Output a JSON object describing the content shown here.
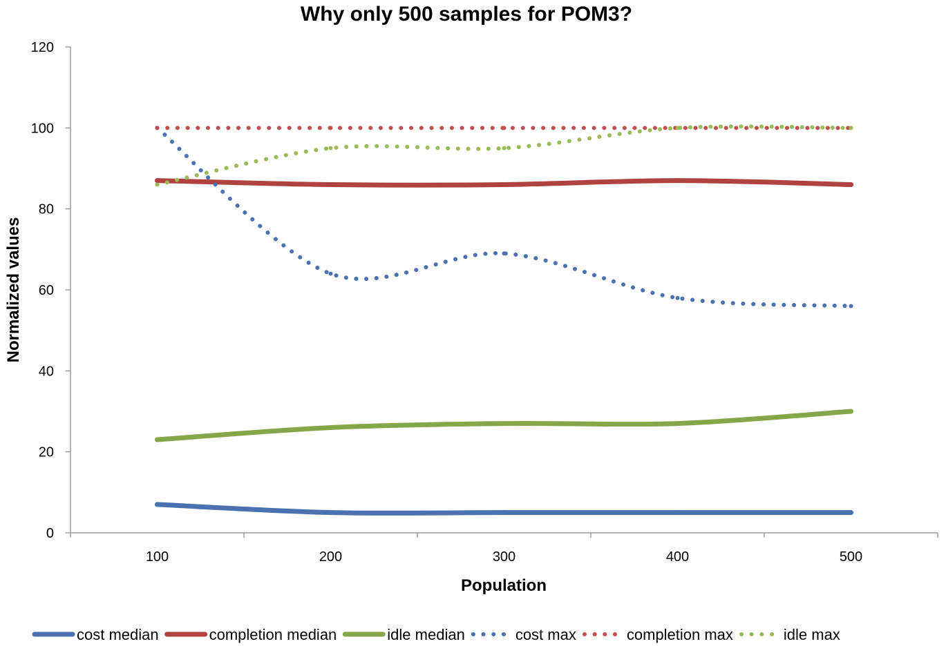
{
  "chart_data": {
    "type": "line",
    "title": "Why only 500 samples for POM3?",
    "xlabel": "Population",
    "ylabel": "Normalized values",
    "categories": [
      "100",
      "200",
      "300",
      "400",
      "500"
    ],
    "ylim": [
      0,
      120
    ],
    "yticks": [
      "0",
      "20",
      "40",
      "60",
      "80",
      "100",
      "120"
    ],
    "grid": false,
    "legend_position": "bottom",
    "series": [
      {
        "name": "cost median",
        "values": [
          7,
          5,
          5,
          5,
          5
        ],
        "color": "#4a72b0",
        "style": "solid"
      },
      {
        "name": "completion median",
        "values": [
          87,
          86,
          86,
          87,
          86
        ],
        "color": "#b0423f",
        "style": "solid"
      },
      {
        "name": "idle median",
        "values": [
          23,
          26,
          27,
          27,
          30
        ],
        "color": "#86a64a",
        "style": "solid"
      },
      {
        "name": "cost max",
        "values": [
          100,
          64,
          69,
          58,
          56
        ],
        "color": "#4a72b0",
        "style": "dotted"
      },
      {
        "name": "completion max",
        "values": [
          100,
          100,
          100,
          100,
          100
        ],
        "color": "#c0504d",
        "style": "dotted"
      },
      {
        "name": "idle max",
        "values": [
          86,
          95,
          95,
          100,
          100
        ],
        "color": "#9bbb59",
        "style": "dotted"
      }
    ]
  }
}
